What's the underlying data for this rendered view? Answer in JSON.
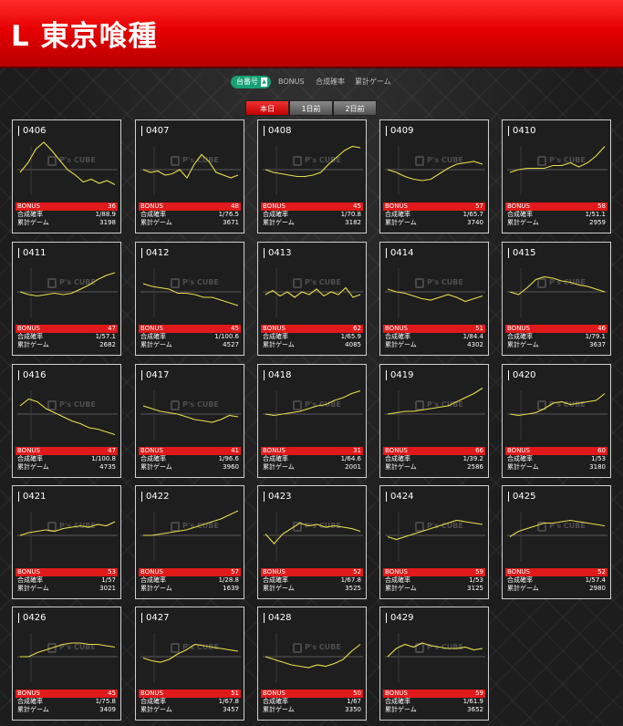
{
  "header": {
    "title": "L 東京喰種"
  },
  "sort": {
    "active_label": "台番号",
    "items": [
      {
        "label": "BONUS"
      },
      {
        "label": "合成確率"
      },
      {
        "label": "累計ゲーム"
      }
    ]
  },
  "day_tabs": [
    {
      "label": "本日",
      "active": true
    },
    {
      "label": "1日前",
      "active": false
    },
    {
      "label": "2日前",
      "active": false
    }
  ],
  "labels": {
    "bonus": "BONUS",
    "prob": "合成確率",
    "games": "累計ゲーム"
  },
  "watermark": "P's CUBE",
  "colors": {
    "accent": "#e01a1a",
    "line": "#e8e04a",
    "sort_active": "#18a074"
  },
  "machines": [
    {
      "id": "0406",
      "bonus": "36",
      "prob": "1/88.9",
      "games": "3198",
      "trend": [
        -0.1,
        0.25,
        0.75,
        1.0,
        0.7,
        0.35,
        0.0,
        -0.2,
        -0.45,
        -0.35,
        -0.5,
        -0.4,
        -0.55
      ]
    },
    {
      "id": "0407",
      "bonus": "48",
      "prob": "1/76.5",
      "games": "3671",
      "trend": [
        0.0,
        -0.1,
        -0.05,
        -0.2,
        -0.15,
        0.0,
        -0.3,
        0.2,
        0.55,
        0.3,
        -0.1,
        -0.2,
        -0.3,
        -0.2
      ]
    },
    {
      "id": "0408",
      "bonus": "45",
      "prob": "1/70.8",
      "games": "3182",
      "trend": [
        0.0,
        -0.1,
        -0.15,
        -0.2,
        -0.25,
        -0.25,
        -0.2,
        -0.1,
        0.2,
        0.45,
        0.7,
        0.85,
        0.8
      ]
    },
    {
      "id": "0409",
      "bonus": "57",
      "prob": "1/65.7",
      "games": "3740",
      "trend": [
        0.0,
        -0.1,
        -0.25,
        -0.35,
        -0.4,
        -0.35,
        -0.15,
        0.05,
        0.2,
        0.25,
        0.3,
        0.2
      ]
    },
    {
      "id": "0410",
      "bonus": "58",
      "prob": "1/51.1",
      "games": "2959",
      "trend": [
        -0.1,
        0.0,
        0.05,
        0.05,
        0.05,
        0.15,
        0.15,
        0.25,
        0.1,
        0.25,
        0.5,
        0.85
      ]
    },
    {
      "id": "0411",
      "bonus": "47",
      "prob": "1/57.1",
      "games": "2682",
      "trend": [
        0.0,
        -0.1,
        -0.15,
        -0.1,
        -0.05,
        -0.1,
        -0.05,
        0.1,
        0.25,
        0.45,
        0.6,
        0.7
      ]
    },
    {
      "id": "0412",
      "bonus": "45",
      "prob": "1/100.6",
      "games": "4527",
      "trend": [
        0.3,
        0.2,
        0.15,
        0.1,
        -0.05,
        -0.05,
        -0.1,
        -0.2,
        -0.2,
        -0.3,
        -0.4,
        -0.5
      ]
    },
    {
      "id": "0413",
      "bonus": "62",
      "prob": "1/65.9",
      "games": "4085",
      "trend": [
        -0.1,
        0.05,
        -0.15,
        0.0,
        -0.2,
        0.0,
        -0.1,
        0.1,
        -0.15,
        0.0,
        -0.1,
        0.15,
        -0.2,
        -0.1
      ]
    },
    {
      "id": "0414",
      "bonus": "51",
      "prob": "1/84.4",
      "games": "4302",
      "trend": [
        0.1,
        0.0,
        -0.05,
        -0.15,
        -0.25,
        -0.3,
        -0.2,
        -0.1,
        -0.2,
        -0.35,
        -0.25,
        -0.15
      ]
    },
    {
      "id": "0415",
      "bonus": "46",
      "prob": "1/79.1",
      "games": "3637",
      "trend": [
        0.0,
        -0.1,
        0.15,
        0.45,
        0.55,
        0.5,
        0.4,
        0.35,
        0.25,
        0.2,
        0.1,
        0.0
      ]
    },
    {
      "id": "0416",
      "bonus": "47",
      "prob": "1/100.8",
      "games": "4735",
      "trend": [
        0.3,
        0.55,
        0.45,
        0.2,
        0.05,
        -0.1,
        -0.25,
        -0.35,
        -0.5,
        -0.55,
        -0.65,
        -0.75
      ]
    },
    {
      "id": "0417",
      "bonus": "41",
      "prob": "1/96.6",
      "games": "3960",
      "trend": [
        0.3,
        0.2,
        0.1,
        0.05,
        0.0,
        -0.1,
        -0.2,
        -0.25,
        -0.3,
        -0.2,
        -0.05,
        -0.1
      ]
    },
    {
      "id": "0418",
      "bonus": "31",
      "prob": "1/64.6",
      "games": "2001",
      "trend": [
        0.0,
        -0.05,
        0.0,
        0.05,
        0.1,
        0.2,
        0.3,
        0.35,
        0.5,
        0.6,
        0.75,
        0.85
      ]
    },
    {
      "id": "0419",
      "bonus": "66",
      "prob": "1/39.2",
      "games": "2586",
      "trend": [
        0.0,
        0.05,
        0.1,
        0.1,
        0.15,
        0.2,
        0.25,
        0.3,
        0.45,
        0.6,
        0.75,
        0.95
      ]
    },
    {
      "id": "0420",
      "bonus": "60",
      "prob": "1/53",
      "games": "3180",
      "trend": [
        0.0,
        -0.05,
        0.0,
        0.05,
        0.2,
        0.4,
        0.45,
        0.35,
        0.4,
        0.45,
        0.5,
        0.75
      ]
    },
    {
      "id": "0421",
      "bonus": "53",
      "prob": "1/57",
      "games": "3021",
      "trend": [
        0.0,
        0.1,
        0.15,
        0.2,
        0.15,
        0.25,
        0.3,
        0.35,
        0.3,
        0.4,
        0.35,
        0.5
      ]
    },
    {
      "id": "0422",
      "bonus": "57",
      "prob": "1/28.8",
      "games": "1639",
      "trend": [
        0.0,
        0.0,
        0.05,
        0.1,
        0.15,
        0.2,
        0.3,
        0.4,
        0.5,
        0.6,
        0.75,
        0.9
      ]
    },
    {
      "id": "0423",
      "bonus": "52",
      "prob": "1/67.8",
      "games": "3525",
      "trend": [
        0.05,
        -0.3,
        0.05,
        0.25,
        0.45,
        0.35,
        0.4,
        0.3,
        0.35,
        0.3,
        0.25,
        0.15
      ]
    },
    {
      "id": "0424",
      "bonus": "59",
      "prob": "1/53",
      "games": "3125",
      "trend": [
        -0.05,
        -0.15,
        -0.05,
        0.05,
        0.15,
        0.25,
        0.35,
        0.45,
        0.55,
        0.5,
        0.45,
        0.4
      ]
    },
    {
      "id": "0425",
      "bonus": "52",
      "prob": "1/57.4",
      "games": "2980",
      "trend": [
        -0.05,
        0.15,
        0.25,
        0.35,
        0.45,
        0.45,
        0.5,
        0.55,
        0.5,
        0.45,
        0.4,
        0.35
      ]
    },
    {
      "id": "0426",
      "bonus": "45",
      "prob": "1/75.8",
      "games": "3409",
      "trend": [
        0.0,
        0.0,
        0.15,
        0.25,
        0.35,
        0.45,
        0.5,
        0.5,
        0.45,
        0.45,
        0.4,
        0.35
      ]
    },
    {
      "id": "0427",
      "bonus": "51",
      "prob": "1/67.8",
      "games": "3457",
      "trend": [
        -0.05,
        -0.15,
        -0.2,
        -0.1,
        0.1,
        0.25,
        0.45,
        0.4,
        0.35,
        0.3,
        0.25,
        0.2
      ]
    },
    {
      "id": "0428",
      "bonus": "50",
      "prob": "1/67",
      "games": "3350",
      "trend": [
        0.0,
        -0.1,
        -0.2,
        -0.3,
        -0.35,
        -0.4,
        -0.3,
        -0.35,
        -0.25,
        -0.1,
        0.2,
        0.45
      ]
    },
    {
      "id": "0429",
      "bonus": "59",
      "prob": "1/61.9",
      "games": "3652",
      "trend": [
        0.0,
        0.3,
        0.45,
        0.35,
        0.5,
        0.4,
        0.35,
        0.3,
        0.3,
        0.35,
        0.25,
        0.3
      ]
    }
  ]
}
